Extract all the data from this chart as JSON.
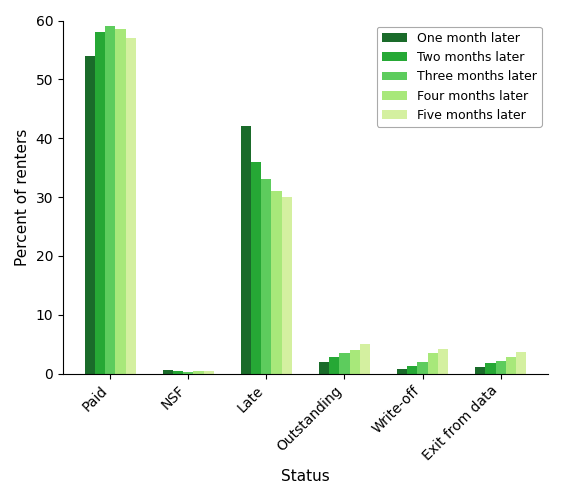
{
  "categories": [
    "Paid",
    "NSF",
    "Late",
    "Outstanding",
    "Write-off",
    "Exit from data"
  ],
  "series": [
    {
      "label": "One month later",
      "color": "#1a6b2a",
      "values": [
        54.0,
        0.7,
        42.0,
        2.0,
        0.8,
        1.2
      ]
    },
    {
      "label": "Two months later",
      "color": "#26a835",
      "values": [
        58.0,
        0.4,
        36.0,
        2.8,
        1.3,
        1.8
      ]
    },
    {
      "label": "Three months later",
      "color": "#5dcc5d",
      "values": [
        59.0,
        0.3,
        33.0,
        3.5,
        2.0,
        2.1
      ]
    },
    {
      "label": "Four months later",
      "color": "#a8e87a",
      "values": [
        58.5,
        0.4,
        31.0,
        4.0,
        3.5,
        2.8
      ]
    },
    {
      "label": "Five months later",
      "color": "#d4f0a0",
      "values": [
        57.0,
        0.4,
        30.0,
        5.0,
        4.2,
        3.7
      ]
    }
  ],
  "xlabel": "Status",
  "ylabel": "Percent of renters",
  "ylim": [
    0,
    60
  ],
  "yticks": [
    0,
    10,
    20,
    30,
    40,
    50,
    60
  ],
  "legend_loc": "upper right",
  "bar_width": 0.13,
  "figsize": [
    5.63,
    4.99
  ],
  "dpi": 100
}
